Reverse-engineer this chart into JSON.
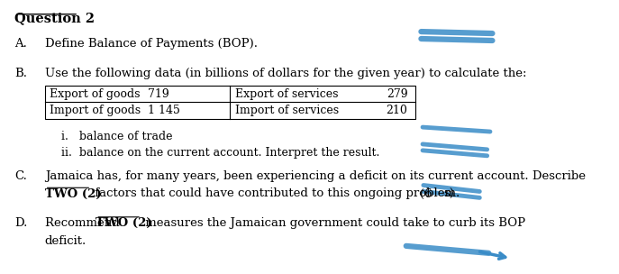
{
  "title": "Question 2",
  "section_A_label": "A.",
  "section_A_text": "Define Balance of Payments (BOP).",
  "section_B_label": "B.",
  "section_B_text": "Use the following data (in billions of dollars for the given year) to calculate the:",
  "table": {
    "row1_col1": "Export of goods",
    "row1_col2": "719",
    "row1_col3": "Export of services",
    "row1_col4": "279",
    "row2_col1": "Import of goods",
    "row2_col2": "1 145",
    "row2_col3": "Import of services",
    "row2_col4": "210"
  },
  "sub_i": "i.   balance of trade",
  "sub_ii": "ii.  balance on the current account. Interpret the result.",
  "section_C_label": "C.",
  "section_C_text1": "Jamaica has, for many years, been experiencing a deficit on its current account. Describe",
  "section_C_text2": "TWO (2)",
  "section_C_text3": " factors that could have contributed to this ongoing problem.",
  "section_D_label": "D.",
  "section_D_text1": "Recommend ",
  "section_D_text2": "TWO (2)",
  "section_D_text3": " measures the Jamaican government could take to curb its BOP",
  "section_D_text4": "deficit.",
  "bg_color": "#ffffff",
  "text_color": "#000000",
  "blue_color": "#3a8cc7",
  "font_size": 9.5
}
